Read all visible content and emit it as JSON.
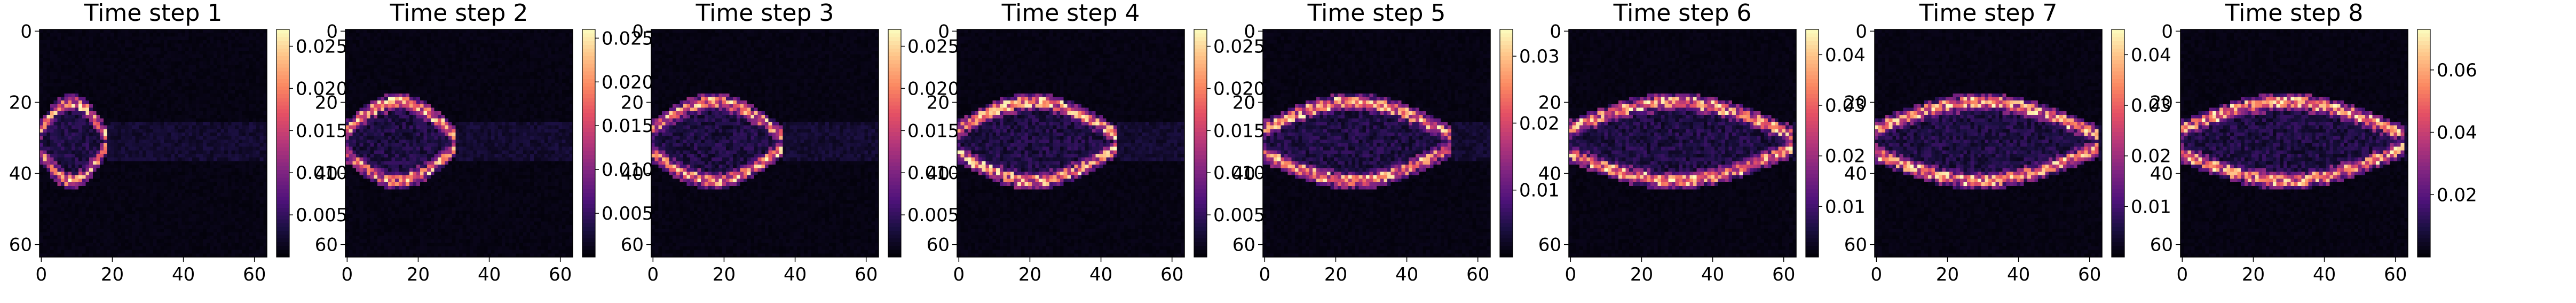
{
  "chart_data": [
    {
      "type": "heatmap",
      "title": "Time step 1",
      "xticks": [
        "0",
        "20",
        "40",
        "60"
      ],
      "yticks": [
        "0",
        "20",
        "40",
        "60"
      ],
      "xlim": [
        0,
        64
      ],
      "ylim": [
        64,
        0
      ],
      "grid": false,
      "colormap": "magma",
      "front_x": 18,
      "colorbar": {
        "min": 0.0,
        "max": 0.027,
        "ticks": [
          {
            "label": "0.005",
            "value": 0.005
          },
          {
            "label": "0.010",
            "value": 0.01
          },
          {
            "label": "0.015",
            "value": 0.015
          },
          {
            "label": "0.020",
            "value": 0.02
          },
          {
            "label": "0.025",
            "value": 0.025
          }
        ]
      }
    },
    {
      "type": "heatmap",
      "title": "Time step 2",
      "xticks": [
        "0",
        "20",
        "40",
        "60"
      ],
      "yticks": [
        "0",
        "20",
        "40",
        "60"
      ],
      "xlim": [
        0,
        64
      ],
      "ylim": [
        64,
        0
      ],
      "grid": false,
      "colormap": "magma",
      "front_x": 30,
      "colorbar": {
        "min": 0.0,
        "max": 0.026,
        "ticks": [
          {
            "label": "0.005",
            "value": 0.005
          },
          {
            "label": "0.010",
            "value": 0.01
          },
          {
            "label": "0.015",
            "value": 0.015
          },
          {
            "label": "0.020",
            "value": 0.02
          },
          {
            "label": "0.025",
            "value": 0.025
          }
        ]
      }
    },
    {
      "type": "heatmap",
      "title": "Time step 3",
      "xticks": [
        "0",
        "20",
        "40",
        "60"
      ],
      "yticks": [
        "0",
        "20",
        "40",
        "60"
      ],
      "xlim": [
        0,
        64
      ],
      "ylim": [
        64,
        0
      ],
      "grid": false,
      "colormap": "magma",
      "front_x": 36,
      "colorbar": {
        "min": 0.0,
        "max": 0.027,
        "ticks": [
          {
            "label": "0.005",
            "value": 0.005
          },
          {
            "label": "0.010",
            "value": 0.01
          },
          {
            "label": "0.015",
            "value": 0.015
          },
          {
            "label": "0.020",
            "value": 0.02
          },
          {
            "label": "0.025",
            "value": 0.025
          }
        ]
      }
    },
    {
      "type": "heatmap",
      "title": "Time step 4",
      "xticks": [
        "0",
        "20",
        "40",
        "60"
      ],
      "yticks": [
        "0",
        "20",
        "40",
        "60"
      ],
      "xlim": [
        0,
        64
      ],
      "ylim": [
        64,
        0
      ],
      "grid": false,
      "colormap": "magma",
      "front_x": 44,
      "colorbar": {
        "min": 0.0,
        "max": 0.027,
        "ticks": [
          {
            "label": "0.005",
            "value": 0.005
          },
          {
            "label": "0.010",
            "value": 0.01
          },
          {
            "label": "0.015",
            "value": 0.015
          },
          {
            "label": "0.020",
            "value": 0.02
          },
          {
            "label": "0.025",
            "value": 0.025
          }
        ]
      }
    },
    {
      "type": "heatmap",
      "title": "Time step 5",
      "xticks": [
        "0",
        "20",
        "40",
        "60"
      ],
      "yticks": [
        "0",
        "20",
        "40",
        "60"
      ],
      "xlim": [
        0,
        64
      ],
      "ylim": [
        64,
        0
      ],
      "grid": false,
      "colormap": "magma",
      "front_x": 52,
      "colorbar": {
        "min": 0.0,
        "max": 0.034,
        "ticks": [
          {
            "label": "0.01",
            "value": 0.01
          },
          {
            "label": "0.02",
            "value": 0.02
          },
          {
            "label": "0.03",
            "value": 0.03
          }
        ]
      }
    },
    {
      "type": "heatmap",
      "title": "Time step 6",
      "xticks": [
        "0",
        "20",
        "40",
        "60"
      ],
      "yticks": [
        "0",
        "20",
        "40",
        "60"
      ],
      "xlim": [
        0,
        64
      ],
      "ylim": [
        64,
        0
      ],
      "grid": false,
      "colormap": "magma",
      "front_x": 62,
      "colorbar": {
        "min": 0.0,
        "max": 0.045,
        "ticks": [
          {
            "label": "0.01",
            "value": 0.01
          },
          {
            "label": "0.02",
            "value": 0.02
          },
          {
            "label": "0.03",
            "value": 0.03
          },
          {
            "label": "0.04",
            "value": 0.04
          }
        ]
      }
    },
    {
      "type": "heatmap",
      "title": "Time step 7",
      "xticks": [
        "0",
        "20",
        "40",
        "60"
      ],
      "yticks": [
        "0",
        "20",
        "40",
        "60"
      ],
      "xlim": [
        0,
        64
      ],
      "ylim": [
        64,
        0
      ],
      "grid": false,
      "colormap": "magma",
      "front_x": 62,
      "colorbar": {
        "min": 0.0,
        "max": 0.045,
        "ticks": [
          {
            "label": "0.01",
            "value": 0.01
          },
          {
            "label": "0.02",
            "value": 0.02
          },
          {
            "label": "0.03",
            "value": 0.03
          },
          {
            "label": "0.04",
            "value": 0.04
          }
        ]
      }
    },
    {
      "type": "heatmap",
      "title": "Time step 8",
      "xticks": [
        "0",
        "20",
        "40",
        "60"
      ],
      "yticks": [
        "0",
        "20",
        "40",
        "60"
      ],
      "xlim": [
        0,
        64
      ],
      "ylim": [
        64,
        0
      ],
      "grid": false,
      "colormap": "magma",
      "front_x": 62,
      "colorbar": {
        "min": 0.0,
        "max": 0.073,
        "ticks": [
          {
            "label": "0.02",
            "value": 0.02
          },
          {
            "label": "0.04",
            "value": 0.04
          },
          {
            "label": "0.06",
            "value": 0.06
          }
        ]
      }
    }
  ]
}
